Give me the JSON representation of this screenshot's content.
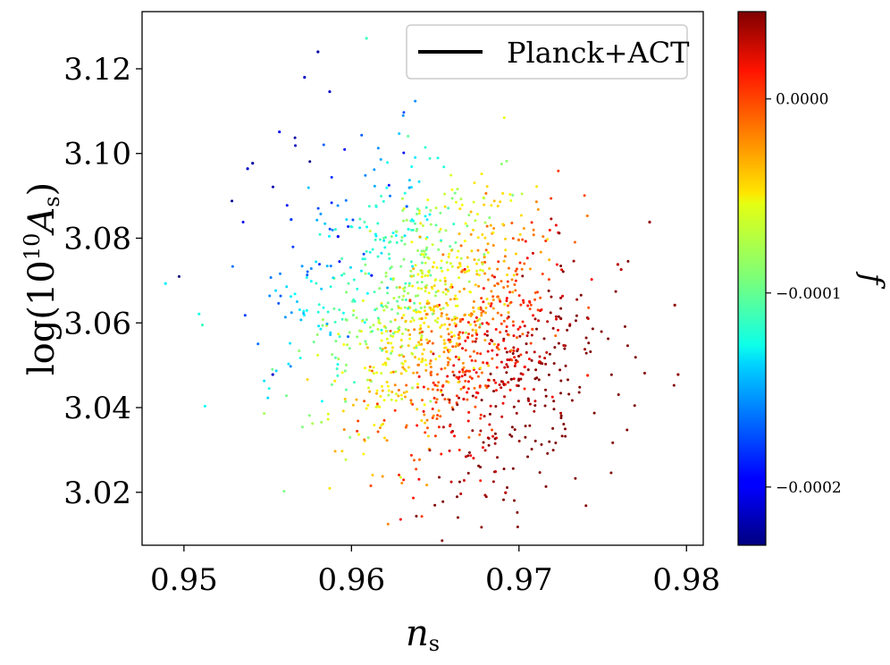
{
  "chart_data": {
    "type": "scatter",
    "title": "",
    "xlabel": {
      "base": "n",
      "sub": "s"
    },
    "ylabel": {
      "prefix": "log(10",
      "sup": "10",
      "var": "A",
      "sub": "s",
      "suffix": ")"
    },
    "xlim": [
      0.9475,
      0.981
    ],
    "ylim": [
      3.0075,
      3.1335
    ],
    "xticks": [
      0.95,
      0.96,
      0.97,
      0.98
    ],
    "xtick_labels": [
      "0.95",
      "0.96",
      "0.97",
      "0.98"
    ],
    "yticks": [
      3.02,
      3.04,
      3.06,
      3.08,
      3.1,
      3.12
    ],
    "ytick_labels": [
      "3.02",
      "3.04",
      "3.06",
      "3.08",
      "3.10",
      "3.12"
    ],
    "legend": {
      "label": "Planck+ACT",
      "placement": "top-right",
      "marker": "line",
      "color": "#000000"
    },
    "colorbar": {
      "label": "f",
      "colormap": "jet",
      "clim": [
        -0.00023,
        4.5e-05
      ],
      "ticks": [
        0.0,
        -0.0001,
        -0.0002
      ],
      "tick_labels": [
        "0.0000",
        "−0.0001",
        "−0.0002"
      ]
    },
    "grid": false,
    "points_visible_count": 1400,
    "points_sample": {
      "x": [
        0.9489,
        0.9509,
        0.9511,
        0.9538,
        0.9541,
        0.9553,
        0.9557,
        0.9564,
        0.9572,
        0.958,
        0.9587,
        0.9592,
        0.9609,
        0.9612,
        0.9621,
        0.9633,
        0.9642,
        0.9658,
        0.9667,
        0.9681,
        0.9692,
        0.9708,
        0.9724,
        0.9741,
        0.9759,
        0.9761,
        0.9778,
        0.9793,
        0.9795
      ],
      "y": [
        3.0693,
        3.0621,
        3.0595,
        3.0964,
        3.0977,
        3.0478,
        3.1051,
        3.0844,
        3.118,
        3.124,
        3.1146,
        3.0804,
        3.1272,
        3.0712,
        3.0532,
        3.0875,
        3.061,
        3.056,
        3.042,
        3.0505,
        3.0199,
        3.0585,
        3.0812,
        3.0476,
        3.0738,
        3.0726,
        3.0838,
        3.0642,
        3.0478
      ],
      "f": [
        -0.00013,
        -0.00012,
        -0.00011,
        -0.00021,
        -0.00022,
        -0.00021,
        -0.0002,
        -0.00018,
        -0.00021,
        -0.00022,
        -0.00021,
        -0.0002,
        -0.00011,
        -0.00019,
        -5e-05,
        -0.00017,
        -3e-05,
        0.0,
        2e-05,
        1e-05,
        3e-05,
        -1e-05,
        4e-05,
        0.0,
        3e-05,
        3e-05,
        4e-05,
        4e-05,
        4e-05
      ]
    }
  }
}
